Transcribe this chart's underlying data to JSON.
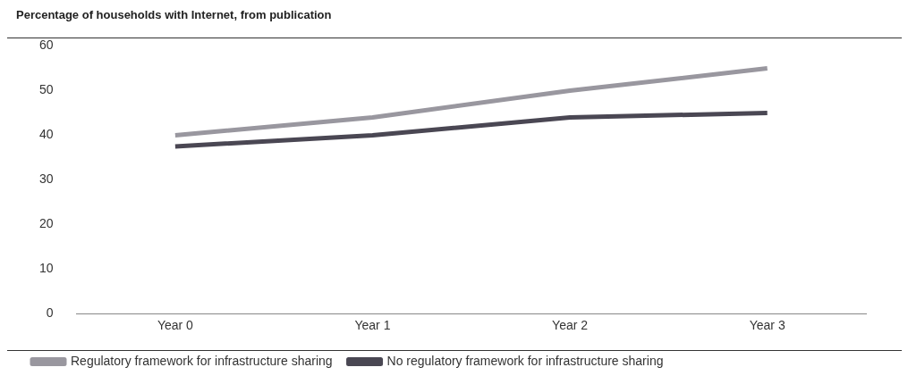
{
  "chart_data": {
    "type": "line",
    "title": "Percentage of households with Internet, from publication",
    "categories": [
      "Year 0",
      "Year 1",
      "Year 2",
      "Year 3"
    ],
    "series": [
      {
        "name": "Regulatory framework for infrastructure sharing",
        "color": "#99979f",
        "values": [
          40,
          44,
          50,
          55
        ]
      },
      {
        "name": "No regulatory framework for infrastructure sharing",
        "color": "#4a4753",
        "values": [
          37.5,
          40,
          44,
          45
        ]
      }
    ],
    "ylim": [
      0,
      60
    ],
    "yticks": [
      0,
      10,
      20,
      30,
      40,
      50,
      60
    ],
    "grid": false,
    "legend": "bottom",
    "marker": "none",
    "line_style": "solid"
  }
}
